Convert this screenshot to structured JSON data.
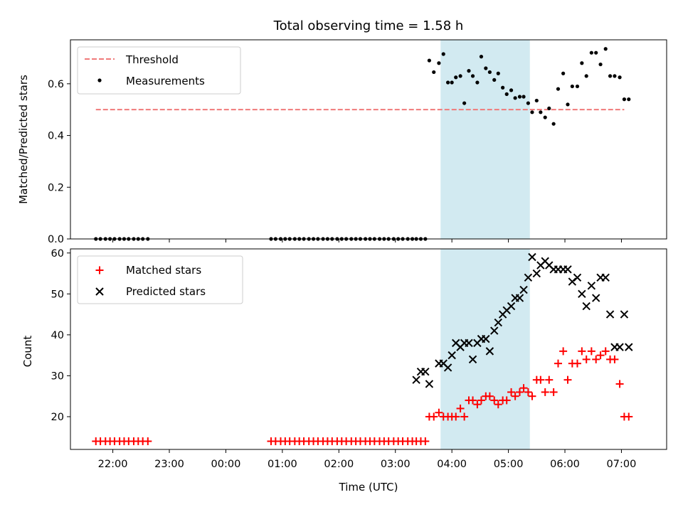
{
  "chart_data": {
    "title": "Total observing time = 1.58 h",
    "xlabel": "Time (UTC)",
    "x_unit": "hours of UTC day (values >= 24 fall on the following day)",
    "xlim": [
      21.25,
      31.8
    ],
    "xticks": [
      22,
      23,
      24,
      25,
      26,
      27,
      28,
      29,
      30,
      31
    ],
    "xtick_labels": [
      "22:00",
      "23:00",
      "00:00",
      "01:00",
      "02:00",
      "03:00",
      "04:00",
      "05:00",
      "06:00",
      "07:00"
    ],
    "highlight_band": {
      "x_start": 27.8,
      "x_end": 29.38,
      "color": "#add8e6"
    },
    "top": {
      "type": "scatter",
      "ylabel": "Matched/Predicted stars",
      "ylim": [
        0,
        0.77
      ],
      "yticks": [
        0.0,
        0.2,
        0.4,
        0.6
      ],
      "ytick_labels": [
        "0.0",
        "0.2",
        "0.4",
        "0.6"
      ],
      "legend_position": "top-left",
      "threshold": {
        "name": "Threshold",
        "value": 0.5,
        "x_start": 21.7,
        "x_end": 31.05,
        "color": "#f07a7a"
      },
      "series": [
        {
          "name": "Measurements",
          "color": "#000000",
          "x": [
            21.7,
            21.78,
            21.87,
            21.95,
            22.03,
            22.12,
            22.2,
            22.28,
            22.37,
            22.45,
            22.53,
            22.62,
            24.8,
            24.88,
            24.97,
            25.05,
            25.13,
            25.22,
            25.3,
            25.38,
            25.47,
            25.55,
            25.63,
            25.72,
            25.8,
            25.88,
            25.97,
            26.05,
            26.13,
            26.22,
            26.3,
            26.38,
            26.47,
            26.55,
            26.63,
            26.72,
            26.8,
            26.88,
            26.97,
            27.05,
            27.13,
            27.22,
            27.3,
            27.37,
            27.45,
            27.53,
            27.6,
            27.68,
            27.77,
            27.85,
            27.93,
            28.0,
            28.07,
            28.15,
            28.22,
            28.3,
            28.37,
            28.45,
            28.52,
            28.6,
            28.67,
            28.75,
            28.82,
            28.9,
            28.97,
            29.05,
            29.12,
            29.2,
            29.27,
            29.35,
            29.42,
            29.5,
            29.57,
            29.65,
            29.72,
            29.8,
            29.88,
            29.97,
            30.05,
            30.13,
            30.22,
            30.3,
            30.38,
            30.47,
            30.55,
            30.63,
            30.72,
            30.8,
            30.88,
            30.97,
            31.05,
            31.13
          ],
          "y": [
            0,
            0,
            0,
            0,
            0,
            0,
            0,
            0,
            0,
            0,
            0,
            0,
            0,
            0,
            0,
            0,
            0,
            0,
            0,
            0,
            0,
            0,
            0,
            0,
            0,
            0,
            0,
            0,
            0,
            0,
            0,
            0,
            0,
            0,
            0,
            0,
            0,
            0,
            0,
            0,
            0,
            0,
            0,
            0,
            0,
            0,
            0.69,
            0.645,
            0.68,
            0.715,
            0.605,
            0.605,
            0.625,
            0.63,
            0.525,
            0.65,
            0.63,
            0.605,
            0.705,
            0.66,
            0.645,
            0.615,
            0.64,
            0.585,
            0.56,
            0.575,
            0.545,
            0.55,
            0.55,
            0.525,
            0.49,
            0.535,
            0.49,
            0.47,
            0.505,
            0.445,
            0.58,
            0.64,
            0.52,
            0.59,
            0.59,
            0.68,
            0.63,
            0.72,
            0.72,
            0.675,
            0.735,
            0.63,
            0.63,
            0.625,
            0.54,
            0.54
          ]
        }
      ]
    },
    "bottom": {
      "type": "scatter",
      "ylabel": "Count",
      "ylim": [
        12,
        61
      ],
      "yticks": [
        20,
        30,
        40,
        50,
        60
      ],
      "ytick_labels": [
        "20",
        "30",
        "40",
        "50",
        "60"
      ],
      "legend_position": "top-left",
      "series": [
        {
          "name": "Matched stars",
          "marker": "plus",
          "color": "#ff0000",
          "x": [
            21.7,
            21.78,
            21.87,
            21.95,
            22.03,
            22.12,
            22.2,
            22.28,
            22.37,
            22.45,
            22.53,
            22.62,
            24.8,
            24.88,
            24.97,
            25.05,
            25.13,
            25.22,
            25.3,
            25.38,
            25.47,
            25.55,
            25.63,
            25.72,
            25.8,
            25.88,
            25.97,
            26.05,
            26.13,
            26.22,
            26.3,
            26.38,
            26.47,
            26.55,
            26.63,
            26.72,
            26.8,
            26.88,
            26.97,
            27.05,
            27.13,
            27.22,
            27.3,
            27.37,
            27.45,
            27.53,
            27.6,
            27.68,
            27.77,
            27.85,
            27.93,
            28.0,
            28.07,
            28.15,
            28.22,
            28.3,
            28.37,
            28.45,
            28.52,
            28.6,
            28.67,
            28.75,
            28.82,
            28.9,
            28.97,
            29.05,
            29.12,
            29.2,
            29.27,
            29.35,
            29.42,
            29.5,
            29.57,
            29.65,
            29.72,
            29.8,
            29.88,
            29.97,
            30.05,
            30.13,
            30.22,
            30.3,
            30.38,
            30.47,
            30.55,
            30.63,
            30.72,
            30.8,
            30.88,
            30.97,
            31.05,
            31.13
          ],
          "y": [
            14,
            14,
            14,
            14,
            14,
            14,
            14,
            14,
            14,
            14,
            14,
            14,
            14,
            14,
            14,
            14,
            14,
            14,
            14,
            14,
            14,
            14,
            14,
            14,
            14,
            14,
            14,
            14,
            14,
            14,
            14,
            14,
            14,
            14,
            14,
            14,
            14,
            14,
            14,
            14,
            14,
            14,
            14,
            14,
            14,
            14,
            20,
            20,
            21,
            20,
            20,
            20,
            20,
            22,
            20,
            24,
            24,
            23,
            24,
            25,
            25,
            24,
            23,
            24,
            24,
            26,
            25,
            26,
            27,
            26,
            25,
            29,
            29,
            26,
            29,
            26,
            33,
            36,
            29,
            33,
            33,
            36,
            34,
            36,
            34,
            35,
            36,
            34,
            34,
            28,
            20,
            20
          ]
        },
        {
          "name": "Predicted stars",
          "marker": "x",
          "color": "#000000",
          "x": [
            27.37,
            27.45,
            27.53,
            27.6,
            27.77,
            27.85,
            27.93,
            28.0,
            28.07,
            28.15,
            28.22,
            28.3,
            28.37,
            28.45,
            28.52,
            28.6,
            28.67,
            28.75,
            28.82,
            28.9,
            28.97,
            29.05,
            29.12,
            29.2,
            29.27,
            29.35,
            29.42,
            29.5,
            29.57,
            29.65,
            29.72,
            29.8,
            29.88,
            29.97,
            30.05,
            30.13,
            30.22,
            30.3,
            30.38,
            30.47,
            30.55,
            30.63,
            30.72,
            30.8,
            30.88,
            30.97,
            31.05,
            31.13
          ],
          "y": [
            29,
            31,
            31,
            28,
            33,
            33,
            32,
            35,
            38,
            37,
            38,
            38,
            34,
            38,
            39,
            39,
            36,
            41,
            43,
            45,
            46,
            47,
            49,
            49,
            51,
            54,
            59,
            55,
            57,
            58,
            57,
            56,
            56,
            56,
            56,
            53,
            54,
            50,
            47,
            52,
            49,
            54,
            54,
            45,
            37,
            37,
            45,
            37
          ]
        }
      ]
    }
  }
}
